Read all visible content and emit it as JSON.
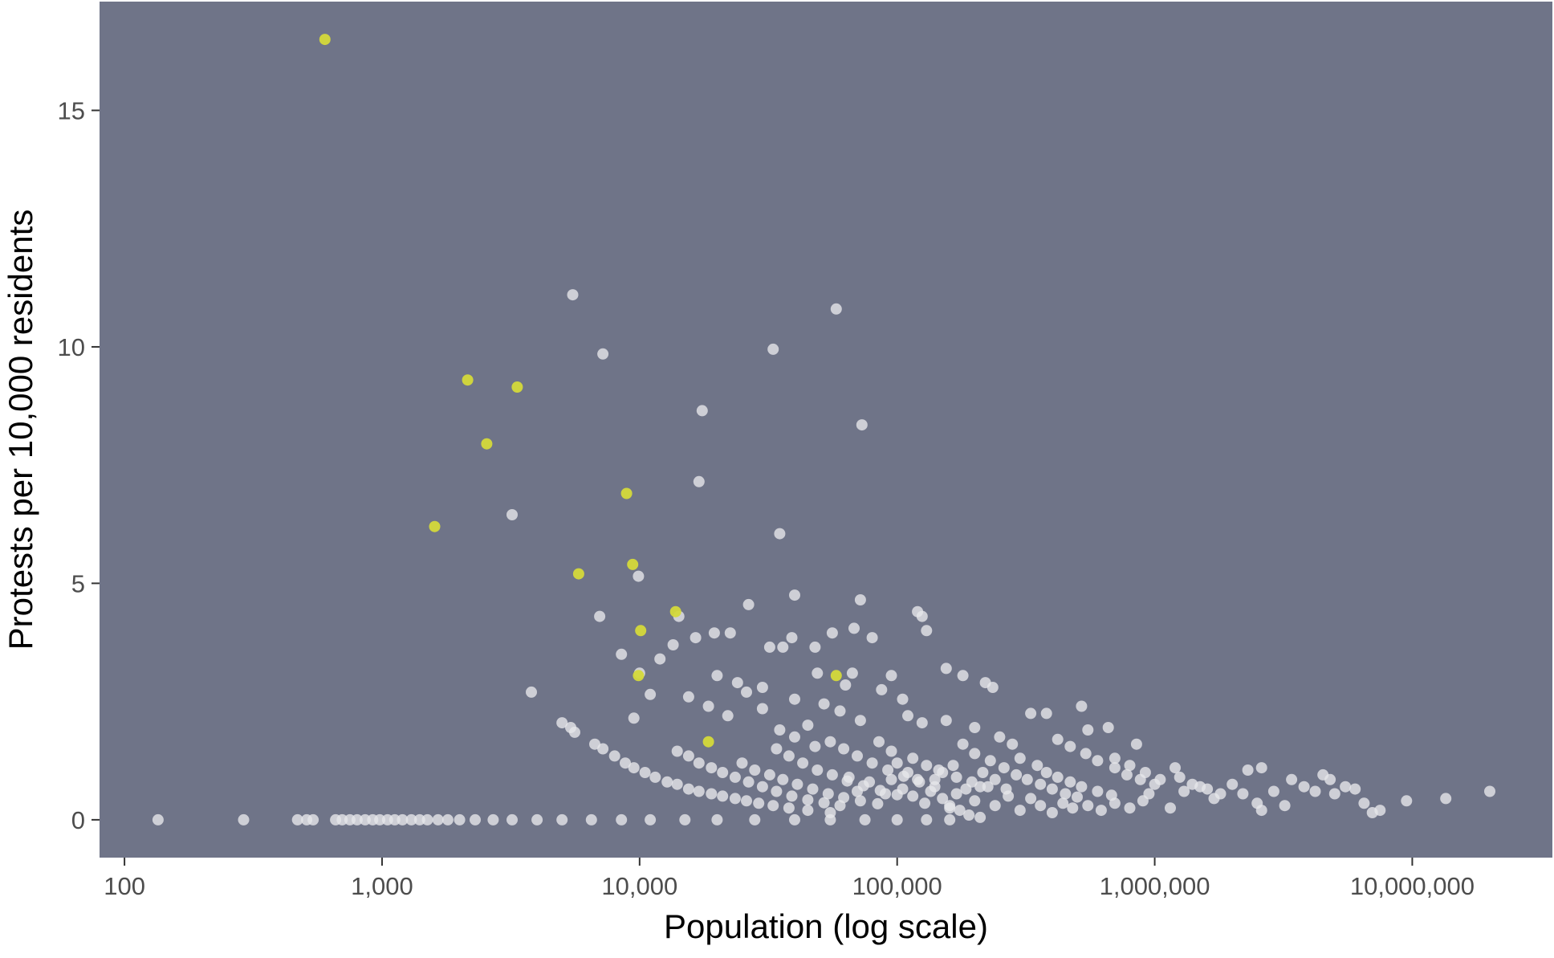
{
  "chart_data": {
    "type": "scatter",
    "title": "",
    "xlabel": "Population (log scale)",
    "ylabel": "Protests per 10,000 residents",
    "x_scale": "log10",
    "xlim": [
      80,
      35000000
    ],
    "ylim": [
      -0.8,
      17.3
    ],
    "x_ticks": [
      {
        "value": 100,
        "label": "100"
      },
      {
        "value": 1000,
        "label": "1,000"
      },
      {
        "value": 10000,
        "label": "10,000"
      },
      {
        "value": 100000,
        "label": "100,000"
      },
      {
        "value": 1000000,
        "label": "1,000,000"
      },
      {
        "value": 10000000,
        "label": "10,000,000"
      }
    ],
    "y_ticks": [
      {
        "value": 0,
        "label": "0"
      },
      {
        "value": 5,
        "label": "5"
      },
      {
        "value": 10,
        "label": "10"
      },
      {
        "value": 15,
        "label": "15"
      }
    ],
    "grid": false,
    "legend": "none",
    "colors": {
      "panel_background": "#6f7488",
      "point_default": "#e6e6ea",
      "point_highlight": "#d4d93a",
      "tick_text": "#4d4d4d",
      "axis_title": "#000000",
      "tick_mark": "#333333"
    },
    "series": [
      {
        "group": "default",
        "points": [
          [
            135,
            0
          ],
          [
            290,
            0
          ],
          [
            470,
            0
          ],
          [
            510,
            0
          ],
          [
            540,
            0
          ],
          [
            660,
            0
          ],
          [
            700,
            0
          ],
          [
            750,
            0
          ],
          [
            800,
            0
          ],
          [
            860,
            0
          ],
          [
            920,
            0
          ],
          [
            980,
            0
          ],
          [
            1050,
            0
          ],
          [
            1120,
            0
          ],
          [
            1200,
            0
          ],
          [
            1300,
            0
          ],
          [
            1400,
            0
          ],
          [
            1500,
            0
          ],
          [
            1650,
            0
          ],
          [
            1800,
            0
          ],
          [
            2000,
            0
          ],
          [
            2300,
            0
          ],
          [
            2700,
            0
          ],
          [
            3200,
            0
          ],
          [
            4000,
            0
          ],
          [
            5000,
            0
          ],
          [
            6500,
            0
          ],
          [
            8500,
            0
          ],
          [
            11000,
            0
          ],
          [
            15000,
            0
          ],
          [
            20000,
            0
          ],
          [
            28000,
            0
          ],
          [
            40000,
            0
          ],
          [
            55000,
            0
          ],
          [
            75000,
            0
          ],
          [
            100000,
            0
          ],
          [
            130000,
            0
          ],
          [
            160000,
            0
          ],
          [
            5500,
            11.1
          ],
          [
            58000,
            10.8
          ],
          [
            7200,
            9.85
          ],
          [
            33000,
            9.95
          ],
          [
            17500,
            8.65
          ],
          [
            73000,
            8.35
          ],
          [
            17000,
            7.15
          ],
          [
            3200,
            6.45
          ],
          [
            35000,
            6.05
          ],
          [
            9900,
            5.15
          ],
          [
            14200,
            4.3
          ],
          [
            7000,
            4.3
          ],
          [
            26500,
            4.55
          ],
          [
            40000,
            4.75
          ],
          [
            72000,
            4.65
          ],
          [
            120000,
            4.4
          ],
          [
            125000,
            4.3
          ],
          [
            130000,
            4.0
          ],
          [
            19500,
            3.95
          ],
          [
            22500,
            3.95
          ],
          [
            16500,
            3.85
          ],
          [
            39000,
            3.85
          ],
          [
            56000,
            3.95
          ],
          [
            68000,
            4.05
          ],
          [
            80000,
            3.85
          ],
          [
            13500,
            3.7
          ],
          [
            32000,
            3.65
          ],
          [
            36000,
            3.65
          ],
          [
            48000,
            3.65
          ],
          [
            8500,
            3.5
          ],
          [
            12000,
            3.4
          ],
          [
            155000,
            3.2
          ],
          [
            180000,
            3.05
          ],
          [
            95000,
            3.05
          ],
          [
            67000,
            3.1
          ],
          [
            20000,
            3.05
          ],
          [
            24000,
            2.9
          ],
          [
            49000,
            3.1
          ],
          [
            10000,
            3.1
          ],
          [
            3800,
            2.7
          ],
          [
            11000,
            2.65
          ],
          [
            15500,
            2.6
          ],
          [
            26000,
            2.7
          ],
          [
            30000,
            2.8
          ],
          [
            40000,
            2.55
          ],
          [
            52000,
            2.45
          ],
          [
            63000,
            2.85
          ],
          [
            87000,
            2.75
          ],
          [
            105000,
            2.55
          ],
          [
            220000,
            2.9
          ],
          [
            235000,
            2.8
          ],
          [
            520000,
            2.4
          ],
          [
            9500,
            2.15
          ],
          [
            18500,
            2.4
          ],
          [
            22000,
            2.2
          ],
          [
            30000,
            2.35
          ],
          [
            45000,
            2.0
          ],
          [
            60000,
            2.3
          ],
          [
            72000,
            2.1
          ],
          [
            110000,
            2.2
          ],
          [
            125000,
            2.05
          ],
          [
            155000,
            2.1
          ],
          [
            200000,
            1.95
          ],
          [
            330000,
            2.25
          ],
          [
            380000,
            2.25
          ],
          [
            550000,
            1.9
          ],
          [
            660000,
            1.95
          ],
          [
            850000,
            1.6
          ],
          [
            5000,
            2.05
          ],
          [
            5400,
            1.95
          ],
          [
            5600,
            1.85
          ],
          [
            6700,
            1.6
          ],
          [
            7200,
            1.5
          ],
          [
            8000,
            1.35
          ],
          [
            8800,
            1.2
          ],
          [
            9500,
            1.1
          ],
          [
            10500,
            1.0
          ],
          [
            11500,
            0.9
          ],
          [
            12800,
            0.8
          ],
          [
            14000,
            0.75
          ],
          [
            15500,
            0.65
          ],
          [
            17000,
            0.6
          ],
          [
            19000,
            0.55
          ],
          [
            21000,
            0.5
          ],
          [
            23500,
            0.45
          ],
          [
            26000,
            0.4
          ],
          [
            29000,
            0.35
          ],
          [
            33000,
            0.3
          ],
          [
            38000,
            0.25
          ],
          [
            45000,
            0.2
          ],
          [
            55000,
            0.15
          ],
          [
            14000,
            1.45
          ],
          [
            15500,
            1.35
          ],
          [
            17000,
            1.2
          ],
          [
            19000,
            1.1
          ],
          [
            21000,
            1.0
          ],
          [
            23500,
            0.9
          ],
          [
            26500,
            0.8
          ],
          [
            30000,
            0.7
          ],
          [
            34000,
            0.6
          ],
          [
            39000,
            0.5
          ],
          [
            45000,
            0.42
          ],
          [
            52000,
            0.36
          ],
          [
            60000,
            0.3
          ],
          [
            25000,
            1.2
          ],
          [
            28000,
            1.05
          ],
          [
            32000,
            0.95
          ],
          [
            36000,
            0.85
          ],
          [
            41000,
            0.75
          ],
          [
            47000,
            0.65
          ],
          [
            54000,
            0.55
          ],
          [
            62000,
            0.47
          ],
          [
            72000,
            0.4
          ],
          [
            84000,
            0.34
          ],
          [
            34000,
            1.5
          ],
          [
            38000,
            1.35
          ],
          [
            43000,
            1.2
          ],
          [
            49000,
            1.05
          ],
          [
            56000,
            0.95
          ],
          [
            64000,
            0.82
          ],
          [
            74000,
            0.72
          ],
          [
            86000,
            0.62
          ],
          [
            100000,
            0.53
          ],
          [
            55000,
            1.65
          ],
          [
            62000,
            1.5
          ],
          [
            70000,
            1.35
          ],
          [
            80000,
            1.2
          ],
          [
            92000,
            1.05
          ],
          [
            106000,
            0.92
          ],
          [
            122000,
            0.8
          ],
          [
            140000,
            0.7
          ],
          [
            35000,
            1.9
          ],
          [
            40000,
            1.75
          ],
          [
            48000,
            1.55
          ],
          [
            85000,
            1.65
          ],
          [
            95000,
            1.45
          ],
          [
            115000,
            1.3
          ],
          [
            130000,
            1.15
          ],
          [
            150000,
            1.0
          ],
          [
            170000,
            0.9
          ],
          [
            195000,
            0.8
          ],
          [
            225000,
            0.7
          ],
          [
            100000,
            1.2
          ],
          [
            110000,
            1.0
          ],
          [
            120000,
            0.85
          ],
          [
            135000,
            0.6
          ],
          [
            150000,
            0.45
          ],
          [
            160000,
            0.3
          ],
          [
            175000,
            0.2
          ],
          [
            190000,
            0.1
          ],
          [
            210000,
            0.05
          ],
          [
            180000,
            1.6
          ],
          [
            200000,
            1.4
          ],
          [
            230000,
            1.25
          ],
          [
            260000,
            1.1
          ],
          [
            290000,
            0.95
          ],
          [
            320000,
            0.85
          ],
          [
            360000,
            0.75
          ],
          [
            400000,
            0.65
          ],
          [
            450000,
            0.55
          ],
          [
            500000,
            0.48
          ],
          [
            250000,
            1.75
          ],
          [
            280000,
            1.6
          ],
          [
            300000,
            1.3
          ],
          [
            350000,
            1.15
          ],
          [
            380000,
            1.0
          ],
          [
            420000,
            0.9
          ],
          [
            470000,
            0.8
          ],
          [
            520000,
            0.7
          ],
          [
            600000,
            0.6
          ],
          [
            680000,
            0.52
          ],
          [
            420000,
            1.7
          ],
          [
            470000,
            1.55
          ],
          [
            540000,
            1.4
          ],
          [
            600000,
            1.25
          ],
          [
            700000,
            1.1
          ],
          [
            780000,
            0.95
          ],
          [
            880000,
            0.85
          ],
          [
            1000000,
            0.75
          ],
          [
            700000,
            1.3
          ],
          [
            800000,
            1.15
          ],
          [
            920000,
            1.0
          ],
          [
            1050000,
            0.85
          ],
          [
            1200000,
            1.1
          ],
          [
            1250000,
            0.9
          ],
          [
            1400000,
            0.75
          ],
          [
            1600000,
            0.65
          ],
          [
            1800000,
            0.55
          ],
          [
            1150000,
            0.25
          ],
          [
            950000,
            0.55
          ],
          [
            1300000,
            0.6
          ],
          [
            1500000,
            0.7
          ],
          [
            1700000,
            0.45
          ],
          [
            2000000,
            0.75
          ],
          [
            2200000,
            0.55
          ],
          [
            2500000,
            0.35
          ],
          [
            2600000,
            0.2
          ],
          [
            2900000,
            0.6
          ],
          [
            2300000,
            1.05
          ],
          [
            2600000,
            1.1
          ],
          [
            3200000,
            0.3
          ],
          [
            3400000,
            0.85
          ],
          [
            3800000,
            0.7
          ],
          [
            4200000,
            0.6
          ],
          [
            4500000,
            0.95
          ],
          [
            5500000,
            0.7
          ],
          [
            6000000,
            0.65
          ],
          [
            6500000,
            0.35
          ],
          [
            7000000,
            0.15
          ],
          [
            7500000,
            0.2
          ],
          [
            9500000,
            0.4
          ],
          [
            13500000,
            0.45
          ],
          [
            20000000,
            0.6
          ],
          [
            5000000,
            0.55
          ],
          [
            4800000,
            0.85
          ],
          [
            160000,
            0.25
          ],
          [
            170000,
            0.55
          ],
          [
            200000,
            0.4
          ],
          [
            210000,
            0.7
          ],
          [
            240000,
            0.3
          ],
          [
            270000,
            0.5
          ],
          [
            300000,
            0.2
          ],
          [
            330000,
            0.45
          ],
          [
            360000,
            0.3
          ],
          [
            400000,
            0.15
          ],
          [
            440000,
            0.35
          ],
          [
            480000,
            0.25
          ],
          [
            550000,
            0.3
          ],
          [
            620000,
            0.2
          ],
          [
            700000,
            0.35
          ],
          [
            800000,
            0.25
          ],
          [
            900000,
            0.4
          ],
          [
            65000,
            0.9
          ],
          [
            70000,
            0.6
          ],
          [
            78000,
            0.8
          ],
          [
            90000,
            0.55
          ],
          [
            95000,
            0.85
          ],
          [
            105000,
            0.65
          ],
          [
            115000,
            0.5
          ],
          [
            128000,
            0.35
          ],
          [
            140000,
            0.85
          ],
          [
            145000,
            1.05
          ],
          [
            165000,
            1.15
          ],
          [
            185000,
            0.65
          ],
          [
            215000,
            1.0
          ],
          [
            240000,
            0.85
          ],
          [
            265000,
            0.65
          ]
        ]
      },
      {
        "group": "highlight",
        "points": [
          [
            600,
            16.5
          ],
          [
            2150,
            9.3
          ],
          [
            3350,
            9.15
          ],
          [
            2550,
            7.95
          ],
          [
            1600,
            6.2
          ],
          [
            8900,
            6.9
          ],
          [
            5800,
            5.2
          ],
          [
            9400,
            5.4
          ],
          [
            13800,
            4.4
          ],
          [
            10100,
            4.0
          ],
          [
            9900,
            3.05
          ],
          [
            58000,
            3.05
          ],
          [
            18500,
            1.65
          ]
        ]
      }
    ]
  }
}
